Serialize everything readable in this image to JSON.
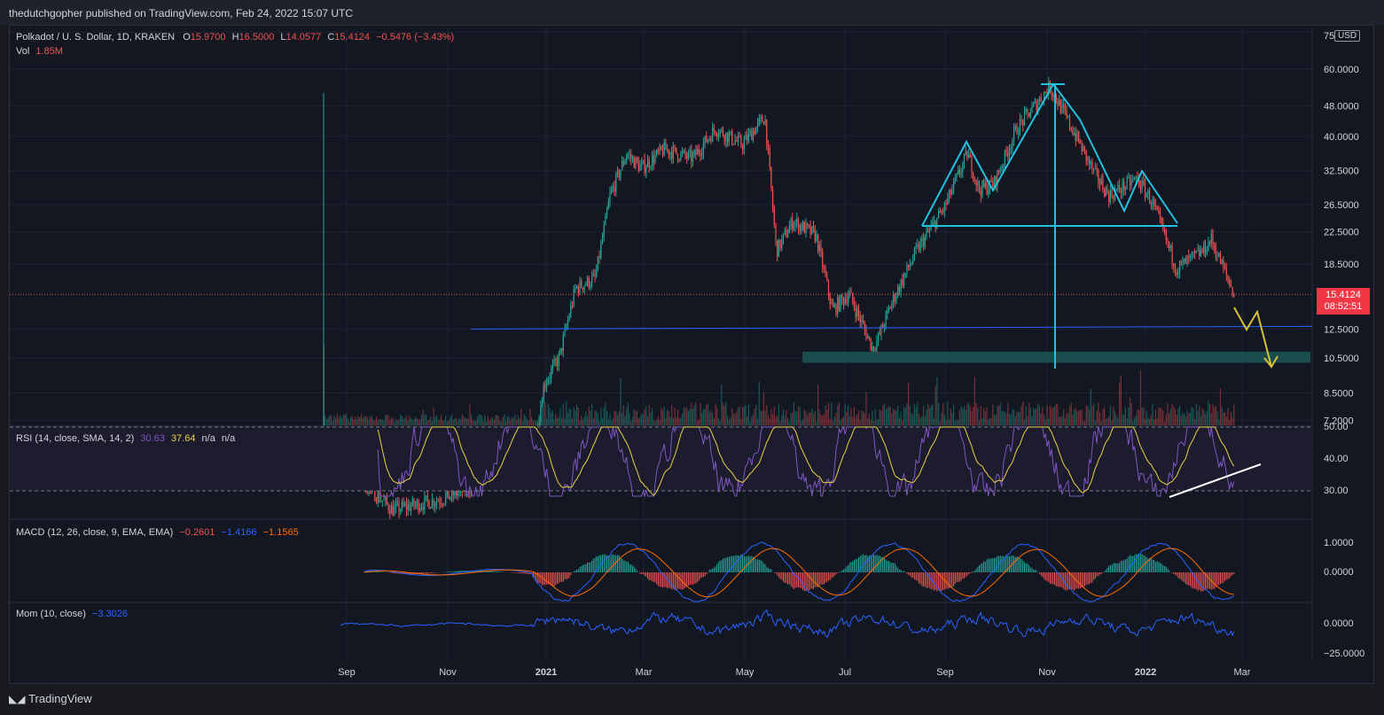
{
  "header": {
    "publish_text": "thedutchgopher published on TradingView.com, Feb 24, 2022 15:07 UTC"
  },
  "legend": {
    "symbol": "Polkadot / U. S. Dollar, 1D, KRAKEN",
    "o_label": "O",
    "o": "15.9700",
    "h_label": "H",
    "h": "16.5000",
    "l_label": "L",
    "l": "14.0577",
    "c_label": "C",
    "c": "15.4124",
    "change": "−0.5476 (−3.43%)",
    "vol_label": "Vol",
    "vol": "1.85M"
  },
  "price_tag": {
    "price": "15.4124",
    "countdown": "08:52:51"
  },
  "currency": "USD",
  "rsi_legend": {
    "label": "RSI (14, close, SMA, 14, 2)",
    "v1": "30.63",
    "v2": "37.64",
    "v3": "n/a",
    "v4": "n/a"
  },
  "macd_legend": {
    "label": "MACD (12, 26, close, 9, EMA, EMA)",
    "v1": "−0.2601",
    "v2": "−1.4166",
    "v3": "−1.1565"
  },
  "mom_legend": {
    "label": "Mom (10, close)",
    "v1": "−3.3026"
  },
  "footer": {
    "brand": "TradingView"
  },
  "colors": {
    "up": "#26a69a",
    "down": "#ef5350",
    "pattern": "#22c1e0",
    "support": "#2962ff",
    "projection": "#d4c03a",
    "rsi": "#7e57c2",
    "rsi_ma": "#e8d245",
    "macd": "#2962ff",
    "signal": "#ff6d00",
    "mom": "#2962ff",
    "zone": "#1b4d4f"
  },
  "chart_data": {
    "type": "candlestick",
    "title": "Polkadot / U. S. Dollar, 1D, KRAKEN",
    "x_ticks": [
      "Sep",
      "Nov",
      "2021",
      "Mar",
      "May",
      "Jul",
      "Sep",
      "Nov",
      "2022",
      "Mar"
    ],
    "y_ticks": [
      "75.0000",
      "60.0000",
      "48.0000",
      "40.0000",
      "32.5000",
      "26.5000",
      "22.5000",
      "18.5000",
      "12.5000",
      "10.5000",
      "8.5000",
      "7.2000"
    ],
    "y_scale": "log",
    "close_path": [
      [
        "2020-08-20",
        5.0
      ],
      [
        "2020-09-01",
        5.5
      ],
      [
        "2020-10-01",
        4.2
      ],
      [
        "2020-11-01",
        4.5
      ],
      [
        "2020-12-01",
        5.1
      ],
      [
        "2020-12-25",
        6.0
      ],
      [
        "2021-01-01",
        9.0
      ],
      [
        "2021-01-10",
        10.5
      ],
      [
        "2021-01-20",
        16.0
      ],
      [
        "2021-02-01",
        17.0
      ],
      [
        "2021-02-10",
        28.0
      ],
      [
        "2021-02-20",
        36.0
      ],
      [
        "2021-03-01",
        33.0
      ],
      [
        "2021-03-15",
        37.0
      ],
      [
        "2021-04-01",
        35.0
      ],
      [
        "2021-04-15",
        42.0
      ],
      [
        "2021-05-01",
        38.0
      ],
      [
        "2021-05-15",
        45.0
      ],
      [
        "2021-05-22",
        20.0
      ],
      [
        "2021-06-01",
        24.0
      ],
      [
        "2021-06-15",
        22.0
      ],
      [
        "2021-06-25",
        14.0
      ],
      [
        "2021-07-05",
        15.5
      ],
      [
        "2021-07-20",
        11.0
      ],
      [
        "2021-08-01",
        15.0
      ],
      [
        "2021-08-15",
        20.0
      ],
      [
        "2021-09-01",
        26.0
      ],
      [
        "2021-09-15",
        36.0
      ],
      [
        "2021-09-22",
        29.0
      ],
      [
        "2021-10-01",
        30.0
      ],
      [
        "2021-10-15",
        42.0
      ],
      [
        "2021-11-04",
        54.0
      ],
      [
        "2021-11-20",
        40.0
      ],
      [
        "2021-12-01",
        32.0
      ],
      [
        "2021-12-10",
        28.0
      ],
      [
        "2021-12-27",
        31.0
      ],
      [
        "2022-01-05",
        27.0
      ],
      [
        "2022-01-20",
        18.0
      ],
      [
        "2022-02-05",
        20.0
      ],
      [
        "2022-02-10",
        21.5
      ],
      [
        "2022-02-24",
        15.4124
      ]
    ],
    "support_line": 12.5,
    "target_zone": [
      10.2,
      10.9
    ],
    "projection_path": [
      15.4,
      12.7,
      14.8,
      10.0
    ],
    "current_price": 15.4124,
    "pattern": "head-and-shoulders",
    "rsi": {
      "upper": 50,
      "lower": 30,
      "ticks": [
        "50.00",
        "40.00",
        "30.00"
      ],
      "last": 30.63,
      "ma_last": 37.64
    },
    "macd": {
      "ticks": [
        "1.0000",
        "0.0000"
      ],
      "macd_last": -1.4166,
      "signal_last": -1.1565,
      "hist_last": -0.2601
    },
    "momentum": {
      "ticks": [
        "0.0000",
        "−25.0000"
      ],
      "last": -3.3026
    }
  }
}
